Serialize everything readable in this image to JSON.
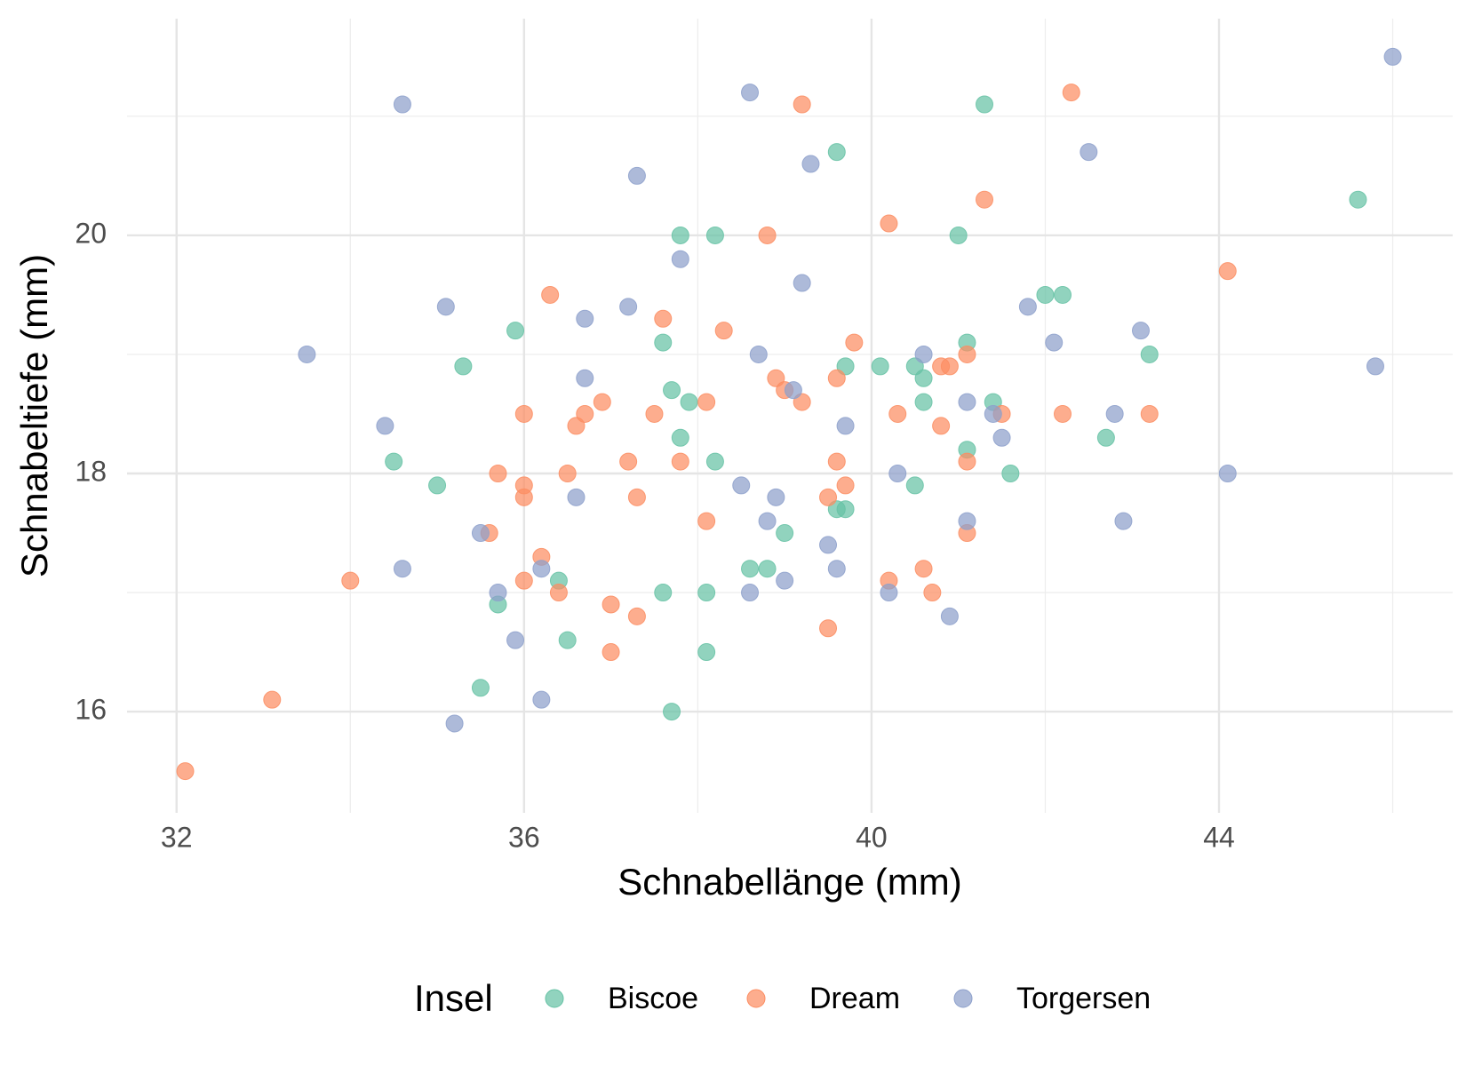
{
  "chart_data": {
    "type": "scatter",
    "x_label": "Schnabellänge (mm)",
    "y_label": "Schnabeltiefe (mm)",
    "legend_title": "Insel",
    "legend_position": "bottom",
    "grid": true,
    "xlim": [
      31.43,
      46.69
    ],
    "ylim": [
      15.15,
      21.82
    ],
    "xticks": [
      32,
      36,
      40,
      44
    ],
    "yticks": [
      16,
      18,
      20
    ],
    "x_minor_grid": [
      34,
      38,
      42,
      46
    ],
    "y_minor_grid": [
      17,
      19,
      21
    ],
    "series": [
      {
        "name": "Biscoe",
        "color": "#66c2a5",
        "x": [
          41.3,
          39.6,
          45.6,
          37.8,
          38.2,
          41.0,
          42.0,
          42.2,
          35.9,
          37.6,
          41.1,
          35.3,
          39.7,
          40.1,
          40.5,
          43.2,
          37.7,
          37.9,
          40.6,
          40.6,
          41.4,
          37.8,
          42.7,
          34.5,
          38.2,
          41.1,
          41.6,
          35.0,
          40.5,
          39.6,
          39.7,
          39.0,
          36.4,
          38.6,
          38.8,
          37.6,
          38.1,
          35.7,
          36.5,
          38.1,
          35.5,
          37.7
        ],
        "values": [
          21.1,
          20.7,
          20.3,
          20.0,
          20.0,
          20.0,
          19.5,
          19.5,
          19.2,
          19.1,
          19.1,
          18.9,
          18.9,
          18.9,
          18.9,
          19.0,
          18.7,
          18.6,
          18.8,
          18.6,
          18.6,
          18.3,
          18.3,
          18.1,
          18.1,
          18.2,
          18.0,
          17.9,
          17.9,
          17.7,
          17.7,
          17.5,
          17.1,
          17.2,
          17.2,
          17.0,
          17.0,
          16.9,
          16.6,
          16.5,
          16.2,
          16.0
        ]
      },
      {
        "name": "Dream",
        "color": "#fc8d62",
        "x": [
          42.3,
          39.2,
          41.3,
          40.2,
          38.8,
          44.1,
          36.3,
          37.6,
          38.3,
          39.8,
          41.1,
          40.8,
          40.9,
          38.9,
          39.6,
          39.0,
          36.9,
          38.1,
          39.2,
          36.0,
          36.7,
          37.5,
          40.3,
          41.5,
          42.2,
          43.2,
          36.6,
          40.8,
          37.2,
          37.8,
          39.6,
          41.1,
          35.7,
          36.5,
          36.0,
          39.7,
          36.0,
          37.3,
          39.5,
          38.1,
          35.6,
          41.1,
          36.2,
          40.6,
          34.0,
          36.0,
          40.2,
          36.4,
          40.7,
          37.0,
          37.3,
          39.5,
          37.0,
          33.1,
          32.1
        ],
        "values": [
          21.2,
          21.1,
          20.3,
          20.1,
          20.0,
          19.7,
          19.5,
          19.3,
          19.2,
          19.1,
          19.0,
          18.9,
          18.9,
          18.8,
          18.8,
          18.7,
          18.6,
          18.6,
          18.6,
          18.5,
          18.5,
          18.5,
          18.5,
          18.5,
          18.5,
          18.5,
          18.4,
          18.4,
          18.1,
          18.1,
          18.1,
          18.1,
          18.0,
          18.0,
          17.9,
          17.9,
          17.8,
          17.8,
          17.8,
          17.6,
          17.5,
          17.5,
          17.3,
          17.2,
          17.1,
          17.1,
          17.1,
          17.0,
          17.0,
          16.9,
          16.8,
          16.7,
          16.5,
          16.1,
          15.5
        ]
      },
      {
        "name": "Torgersen",
        "color": "#8da0cb",
        "x": [
          46.0,
          38.6,
          34.6,
          42.5,
          39.3,
          37.3,
          37.8,
          39.2,
          35.1,
          37.2,
          41.8,
          36.7,
          43.1,
          42.1,
          33.5,
          38.7,
          40.6,
          45.8,
          36.7,
          39.1,
          41.1,
          41.4,
          42.8,
          34.4,
          39.7,
          41.5,
          40.3,
          44.1,
          38.5,
          36.6,
          38.9,
          38.8,
          41.1,
          42.9,
          35.5,
          39.5,
          34.6,
          36.2,
          39.6,
          39.0,
          35.7,
          38.6,
          40.2,
          40.9,
          35.9,
          36.2,
          35.2
        ],
        "values": [
          21.5,
          21.2,
          21.1,
          20.7,
          20.6,
          20.5,
          19.8,
          19.6,
          19.4,
          19.4,
          19.4,
          19.3,
          19.2,
          19.1,
          19.0,
          19.0,
          19.0,
          18.9,
          18.8,
          18.7,
          18.6,
          18.5,
          18.5,
          18.4,
          18.4,
          18.3,
          18.0,
          18.0,
          17.9,
          17.8,
          17.8,
          17.6,
          17.6,
          17.6,
          17.5,
          17.4,
          17.2,
          17.2,
          17.2,
          17.1,
          17.0,
          17.0,
          17.0,
          16.8,
          16.6,
          16.1,
          15.9
        ]
      }
    ]
  }
}
